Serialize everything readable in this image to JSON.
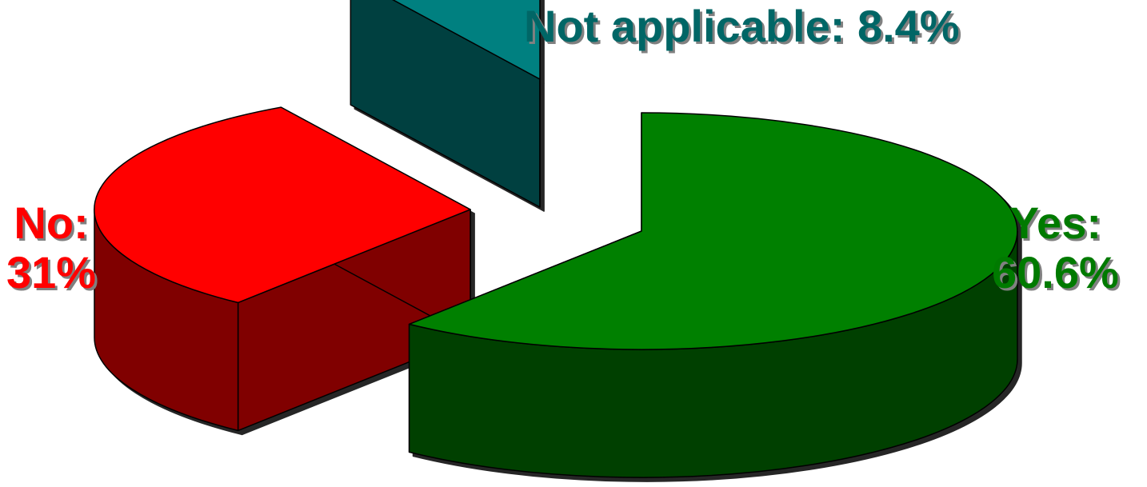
{
  "chart_data": {
    "type": "pie",
    "style": "3d-exploded",
    "slices": [
      {
        "label": "Yes",
        "value": 60.6,
        "display": "60.6%",
        "color": "#008000",
        "side_color": "#004000"
      },
      {
        "label": "No",
        "value": 31,
        "display": "31%",
        "color": "#ff0000",
        "side_color": "#800000"
      },
      {
        "label": "Not applicable",
        "value": 8.4,
        "display": "8.4%",
        "color": "#008080",
        "side_color": "#004040"
      }
    ],
    "labels": {
      "not_applicable": "Not applicable: 8.4%",
      "no_line1": "No:",
      "no_line2": "31%",
      "yes_line1": "Yes:",
      "yes_line2": "60.6%"
    },
    "legend": false,
    "grid": false
  }
}
